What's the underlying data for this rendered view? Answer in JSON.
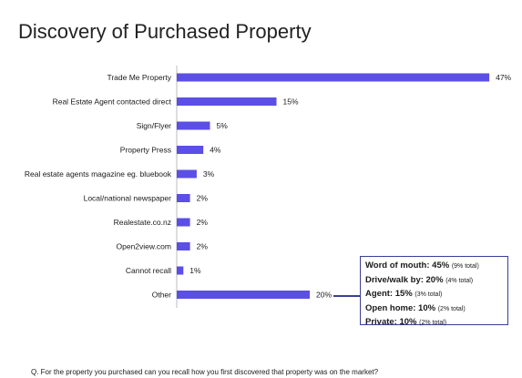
{
  "chart_data": {
    "type": "bar",
    "orientation": "horizontal",
    "title": "Discovery of Purchased Property",
    "categories": [
      "Trade Me Property",
      "Real Estate Agent contacted direct",
      "Sign/Flyer",
      "Property Press",
      "Real estate agents magazine eg. bluebook",
      "Local/national newspaper",
      "Realestate.co.nz",
      "Open2view.com",
      "Cannot recall",
      "Other"
    ],
    "values": [
      47,
      15,
      5,
      4,
      3,
      2,
      2,
      2,
      1,
      20
    ],
    "value_labels": [
      "47%",
      "15%",
      "5%",
      "4%",
      "3%",
      "2%",
      "2%",
      "2%",
      "1%",
      "20%"
    ],
    "bar_color": "#5b4fe6",
    "grid": false,
    "legend": "none",
    "annotation": {
      "target": "Other",
      "items": [
        {
          "label": "Word of mouth: 45%",
          "note": "(9% total)"
        },
        {
          "label": "Drive/walk by: 20%",
          "note": "(4% total)"
        },
        {
          "label": "Agent: 15%",
          "note": "(3% total)"
        },
        {
          "label": "Open home: 10%",
          "note": "(2% total)"
        },
        {
          "label": "Private: 10%",
          "note": "(2% total)"
        }
      ]
    },
    "footnote": "Q. For the property you purchased can you recall how you first discovered that property was on the market?"
  }
}
